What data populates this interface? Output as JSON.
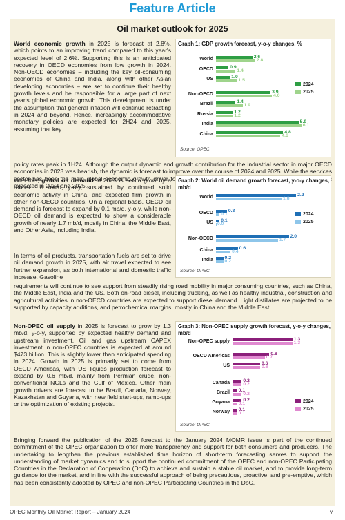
{
  "header": "Feature Article",
  "subtitle": "Oil market outlook for 2025",
  "sections": {
    "p1_lead": "World economic growth",
    "p1_rest": " in 2025 is forecast at 2.8%, which points to an improving trend compared to this year's expected level of 2.6%. Supporting this is an anticipated recovery in OECD economies from low growth in 2024. Non-OECD economies – including the key oil-consuming economies of China and India, along with other Asian developing economies – are set to continue their healthy growth levels and be responsible for a large part of next year's global economic growth. This development is under the assumption that general inflation will continue retracting in 2024 and beyond. Hence, increasingly accommodative monetary policies are expected for 2H24 and 2025, assuming that key",
    "p1_full": "policy rates peak in 1H24. Although the output dynamic and growth contribution for the industrial sector in major OECD economies in 2023 was bearish, the dynamic is forecast to improve over the course of 2024 and 2025. While the services sector has been the main global economic growth driver for 2023, a normalization of the sector's growth dynamic is expected in 2024 and 2025.",
    "p2_lead": "global oil demand",
    "p2_pre": "With this, ",
    "p2_rest": " in 2025 is set to grow by a robust 1.8 mb/d, y-o-y, sustained by continued solid economic activity in China, and expected firm growth in other non-OECD countries. On a regional basis, OECD oil demand is forecast to expand by 0.1 mb/d, y-o-y, while non-OECD oil demand is expected to show a considerable growth of nearly 1.7 mb/d, mostly in China, the Middle East, and Other Asia, including India.",
    "p3": "In terms of oil products, transportation fuels are set to drive oil demand growth in 2025, with air travel expected to see further expansion, as both international and domestic traffic increase. Gasoline",
    "p3_full": "requirements will continue to see support from steadily rising road mobility in major consuming countries, such as China, the Middle East, India and the US. Both on-road diesel, including trucking, as well as healthy industrial, construction and agricultural activities in non-OECD countries are expected to support diesel demand. Light distillates are projected to be supported by capacity additions, and petrochemical margins, mostly in China and the Middle East.",
    "p4_lead": "Non-OPEC oil supply",
    "p4_rest": " in 2025 is forecast to grow by 1.3 mb/d, y-o-y, supported by expected healthy demand and upstream investment. Oil and gas upstream CAPEX investment in non-OPEC countries is expected at around $473 billion. This is slightly lower than anticipated spending in 2024. Growth in 2025 is primarily set to come from OECD Americas, with US liquids production forecast to expand by 0.6 mb/d, mainly from Permian crude, non-conventional NGLs and the Gulf of Mexico. Other main growth drivers are forecast to be Brazil, Canada, Norway, Kazakhstan and Guyana, with new field start-ups, ramp-ups or the optimization of existing projects.",
    "p5": "Bringing forward the publication of the 2025 forecast to the January 2024 MOMR issue is part of the continued commitment of the OPEC organization to offer more transparency and support for both consumers and producers. The undertaking to lengthen the previous established time horizon of short-term forecasting serves to support the understanding of market dynamics and to support the continued commitment of the OPEC and non-OPEC Participating Countries in the Declaration of Cooperation (DoC) to achieve and sustain a stable oil market, and to provide long-term guidance for the market, and in line with the successful approach of being precautious, proactive, and pre-emptive, which has been consistently adopted by OPEC and non-OPEC Participating Countries in the DoC."
  },
  "chart_data": [
    {
      "type": "bar",
      "title": "Graph 1: GDP growth forecast, y-o-y changes, %",
      "categories": [
        "World",
        "OECD",
        "US",
        "Non-OECD",
        "Brazil",
        "Russia",
        "India",
        "China"
      ],
      "series": [
        {
          "name": "2024",
          "values": [
            2.6,
            0.9,
            1.0,
            3.9,
            1.4,
            1.2,
            5.9,
            4.8
          ],
          "color": "#2e9e44"
        },
        {
          "name": "2025",
          "values": [
            2.8,
            1.4,
            1.5,
            4.0,
            1.9,
            1.2,
            6.1,
            4.6
          ],
          "color": "#9fd48c"
        }
      ],
      "xlim": [
        0,
        7
      ],
      "source": "Source: OPEC."
    },
    {
      "type": "bar",
      "title": "Graph 2: World oil demand growth forecast, y-o-y changes, mb/d",
      "categories": [
        "World",
        "OECD",
        "US",
        "Non-OECD",
        "China",
        "India"
      ],
      "series": [
        {
          "name": "2024",
          "values": [
            2.2,
            0.3,
            0.1,
            2.0,
            0.6,
            0.2
          ],
          "color": "#1f6fb5"
        },
        {
          "name": "2025",
          "values": [
            1.8,
            0.1,
            0.0,
            1.7,
            0.4,
            0.2
          ],
          "color": "#8ec6ea"
        }
      ],
      "xlim": [
        0,
        2.5
      ],
      "source": "Source: OPEC."
    },
    {
      "type": "bar",
      "title": "Graph 3: Non-OPEC supply growth forecast, y-o-y changes, mb/d",
      "categories": [
        "Non-OPEC supply",
        "OECD Americas",
        "US",
        "Canada",
        "Brazil",
        "Guyana",
        "Norway"
      ],
      "series": [
        {
          "name": "2024",
          "values": [
            1.3,
            0.8,
            0.6,
            0.2,
            0.1,
            0.2,
            0.1
          ],
          "color": "#8b1f7a"
        },
        {
          "name": "2025",
          "values": [
            1.3,
            0.7,
            0.6,
            0.2,
            0.2,
            0.1,
            0.1
          ],
          "color": "#e08ad0"
        }
      ],
      "xlim": [
        0,
        1.5
      ],
      "source": "Source: OPEC."
    }
  ],
  "footer": {
    "left": "OPEC Monthly Oil Market Report – January 2024",
    "right": "v"
  }
}
